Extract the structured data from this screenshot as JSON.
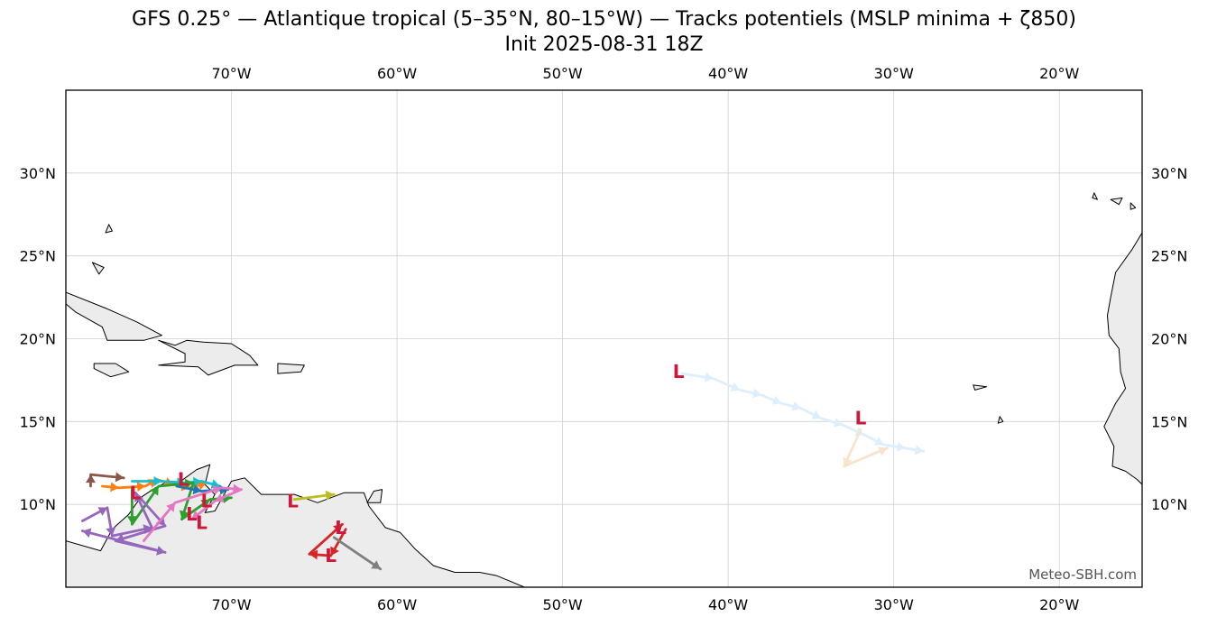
{
  "title": {
    "line1": "GFS 0.25° — Atlantique tropical (5–35°N, 80–15°W) — Tracks potentiels (MSLP minima + ζ850)",
    "line2": "Init 2025-08-31 18Z"
  },
  "credit": "Meteo-SBH.com",
  "chart_data": {
    "type": "map-tracks",
    "extent": {
      "lon": [
        -80,
        -15
      ],
      "lat": [
        5,
        35
      ]
    },
    "grid": true,
    "x_ticks": [
      {
        "value": -70,
        "label": "70°W"
      },
      {
        "value": -60,
        "label": "60°W"
      },
      {
        "value": -50,
        "label": "50°W"
      },
      {
        "value": -40,
        "label": "40°W"
      },
      {
        "value": -30,
        "label": "30°W"
      },
      {
        "value": -20,
        "label": "20°W"
      }
    ],
    "y_ticks": [
      {
        "value": 10,
        "label": "10°N"
      },
      {
        "value": 15,
        "label": "15°N"
      },
      {
        "value": 20,
        "label": "20°N"
      },
      {
        "value": 25,
        "label": "25°N"
      },
      {
        "value": 30,
        "label": "30°N"
      }
    ],
    "low_marker": "L",
    "lows": [
      {
        "lon": -43.0,
        "lat": 18.0
      },
      {
        "lon": -32.0,
        "lat": 15.2
      },
      {
        "lon": -66.3,
        "lat": 10.2
      },
      {
        "lon": -63.4,
        "lat": 8.6
      },
      {
        "lon": -64.0,
        "lat": 6.9
      },
      {
        "lon": -75.8,
        "lat": 10.7
      },
      {
        "lon": -72.9,
        "lat": 11.5
      },
      {
        "lon": -71.5,
        "lat": 10.2
      },
      {
        "lon": -72.4,
        "lat": 9.4
      },
      {
        "lon": -71.8,
        "lat": 8.9
      }
    ],
    "tracks": [
      {
        "color": "#ddeefc",
        "points": [
          [
            -42.8,
            17.9
          ],
          [
            -40.9,
            17.6
          ],
          [
            -39.3,
            16.9
          ],
          [
            -38.0,
            16.6
          ],
          [
            -36.8,
            16.1
          ],
          [
            -35.6,
            15.8
          ],
          [
            -34.4,
            15.2
          ],
          [
            -33.1,
            14.8
          ],
          [
            -31.8,
            14.2
          ],
          [
            -30.6,
            13.6
          ],
          [
            -29.3,
            13.4
          ],
          [
            -28.2,
            13.2
          ]
        ]
      },
      {
        "color": "#f7e4cc",
        "points": [
          [
            -32.0,
            14.5
          ],
          [
            -33.0,
            12.3
          ],
          [
            -30.4,
            13.4
          ]
        ]
      },
      {
        "color": "#bcbd22",
        "points": [
          [
            -66.2,
            10.3
          ],
          [
            -63.8,
            10.6
          ]
        ]
      },
      {
        "color": "#d62728",
        "points": [
          [
            -63.1,
            8.5
          ],
          [
            -64.0,
            6.9
          ],
          [
            -65.3,
            7.0
          ],
          [
            -63.3,
            8.8
          ]
        ]
      },
      {
        "color": "#7f7f7f",
        "points": [
          [
            -63.8,
            8.0
          ],
          [
            -61.0,
            6.1
          ]
        ]
      },
      {
        "color": "#8c564b",
        "points": [
          [
            -78.5,
            11.1
          ],
          [
            -78.5,
            11.8
          ],
          [
            -76.5,
            11.6
          ]
        ]
      },
      {
        "color": "#ff7f0e",
        "points": [
          [
            -77.8,
            11.1
          ],
          [
            -76.8,
            11.0
          ],
          [
            -75.2,
            11.1
          ],
          [
            -74.5,
            11.5
          ],
          [
            -73.5,
            11.2
          ],
          [
            -72.5,
            11.0
          ],
          [
            -71.5,
            11.3
          ]
        ]
      },
      {
        "color": "#17becf",
        "points": [
          [
            -76.0,
            11.4
          ],
          [
            -74.2,
            11.4
          ],
          [
            -72.8,
            11.3
          ],
          [
            -71.8,
            11.4
          ],
          [
            -70.7,
            11.1
          ]
        ]
      },
      {
        "color": "#2ca02c",
        "points": [
          [
            -76.0,
            11.0
          ],
          [
            -76.0,
            8.8
          ],
          [
            -74.4,
            11.1
          ],
          [
            -72.3,
            11.3
          ],
          [
            -73.0,
            9.1
          ],
          [
            -71.3,
            10.3
          ],
          [
            -70.0,
            10.4
          ]
        ]
      },
      {
        "color": "#1f77b4",
        "points": [
          [
            -73.3,
            11.1
          ],
          [
            -71.8,
            10.8
          ],
          [
            -70.2,
            10.9
          ]
        ]
      },
      {
        "color": "#9467bd",
        "points": [
          [
            -79.0,
            9.0
          ],
          [
            -77.5,
            9.8
          ],
          [
            -77.2,
            8.1
          ],
          [
            -74.8,
            8.6
          ],
          [
            -75.8,
            10.7
          ],
          [
            -74.0,
            8.7
          ],
          [
            -77.0,
            7.8
          ],
          [
            -74.0,
            7.1
          ],
          [
            -79.0,
            8.4
          ]
        ]
      },
      {
        "color": "#e377c2",
        "points": [
          [
            -75.3,
            7.8
          ],
          [
            -73.4,
            10.1
          ],
          [
            -70.6,
            11.0
          ],
          [
            -69.4,
            10.9
          ],
          [
            -71.0,
            10.2
          ],
          [
            -72.4,
            9.1
          ]
        ]
      }
    ],
    "land": [
      [
        [
          -80.0,
          7.8
        ],
        [
          -77.9,
          7.2
        ],
        [
          -77.2,
          8.5
        ],
        [
          -76.2,
          9.4
        ],
        [
          -75.5,
          10.4
        ],
        [
          -74.6,
          11.0
        ],
        [
          -74.0,
          11.3
        ],
        [
          -73.2,
          11.3
        ],
        [
          -72.1,
          12.1
        ],
        [
          -71.3,
          12.4
        ],
        [
          -71.6,
          11.2
        ],
        [
          -71.0,
          10.6
        ],
        [
          -71.6,
          9.5
        ],
        [
          -71.0,
          9.6
        ],
        [
          -70.0,
          11.4
        ],
        [
          -69.2,
          11.6
        ],
        [
          -68.2,
          10.6
        ],
        [
          -66.2,
          10.6
        ],
        [
          -64.8,
          10.1
        ],
        [
          -63.2,
          10.7
        ],
        [
          -62.0,
          10.7
        ],
        [
          -61.7,
          9.9
        ],
        [
          -60.7,
          8.6
        ],
        [
          -59.8,
          8.3
        ],
        [
          -58.9,
          7.3
        ],
        [
          -57.8,
          6.3
        ],
        [
          -56.5,
          5.9
        ],
        [
          -55.0,
          5.9
        ],
        [
          -54.0,
          5.7
        ],
        [
          -52.3,
          5.0
        ],
        [
          -80.0,
          5.0
        ]
      ],
      [
        [
          -80.0,
          22.8
        ],
        [
          -77.5,
          21.8
        ],
        [
          -75.7,
          21.0
        ],
        [
          -74.2,
          20.2
        ],
        [
          -75.3,
          19.9
        ],
        [
          -77.5,
          19.9
        ],
        [
          -77.8,
          20.7
        ],
        [
          -79.4,
          21.6
        ],
        [
          -80.0,
          22.1
        ]
      ],
      [
        [
          -74.4,
          19.9
        ],
        [
          -73.4,
          19.6
        ],
        [
          -72.7,
          19.9
        ],
        [
          -71.7,
          19.8
        ],
        [
          -70.0,
          19.7
        ],
        [
          -68.9,
          19.0
        ],
        [
          -68.4,
          18.4
        ],
        [
          -69.8,
          18.4
        ],
        [
          -71.4,
          17.8
        ],
        [
          -72.0,
          18.3
        ],
        [
          -74.4,
          18.4
        ],
        [
          -72.8,
          18.6
        ],
        [
          -72.8,
          19.1
        ]
      ],
      [
        [
          -67.2,
          18.5
        ],
        [
          -65.6,
          18.4
        ],
        [
          -65.8,
          18.0
        ],
        [
          -67.2,
          17.9
        ]
      ],
      [
        [
          -78.3,
          18.5
        ],
        [
          -77.0,
          18.5
        ],
        [
          -76.2,
          18.0
        ],
        [
          -77.3,
          17.7
        ],
        [
          -78.3,
          18.2
        ]
      ],
      [
        [
          -61.4,
          10.8
        ],
        [
          -60.9,
          10.9
        ],
        [
          -61.0,
          10.1
        ],
        [
          -61.8,
          10.1
        ]
      ],
      [
        [
          -15.0,
          26.4
        ],
        [
          -15.6,
          25.4
        ],
        [
          -16.6,
          24.0
        ],
        [
          -16.9,
          22.5
        ],
        [
          -17.1,
          21.4
        ],
        [
          -17.0,
          20.2
        ],
        [
          -16.4,
          19.4
        ],
        [
          -16.3,
          18.0
        ],
        [
          -16.0,
          17.0
        ],
        [
          -16.6,
          16.1
        ],
        [
          -17.3,
          14.7
        ],
        [
          -16.9,
          13.9
        ],
        [
          -16.7,
          13.5
        ],
        [
          -16.8,
          12.3
        ],
        [
          -16.0,
          12.0
        ],
        [
          -15.3,
          11.5
        ],
        [
          -15.0,
          11.2
        ]
      ],
      [
        [
          -24.4,
          17.1
        ],
        [
          -25.2,
          17.2
        ],
        [
          -25.1,
          16.9
        ]
      ],
      [
        [
          -23.6,
          15.3
        ],
        [
          -23.4,
          15.0
        ],
        [
          -23.7,
          14.9
        ]
      ],
      [
        [
          -17.9,
          28.8
        ],
        [
          -17.7,
          28.4
        ],
        [
          -18.0,
          28.5
        ]
      ],
      [
        [
          -16.9,
          28.4
        ],
        [
          -16.2,
          28.5
        ],
        [
          -16.4,
          28.1
        ]
      ],
      [
        [
          -15.7,
          28.2
        ],
        [
          -15.4,
          27.9
        ],
        [
          -15.7,
          27.8
        ]
      ],
      [
        [
          -77.4,
          26.9
        ],
        [
          -77.2,
          26.5
        ],
        [
          -77.6,
          26.4
        ]
      ],
      [
        [
          -78.4,
          24.6
        ],
        [
          -77.7,
          24.3
        ],
        [
          -78.0,
          23.9
        ]
      ]
    ]
  }
}
